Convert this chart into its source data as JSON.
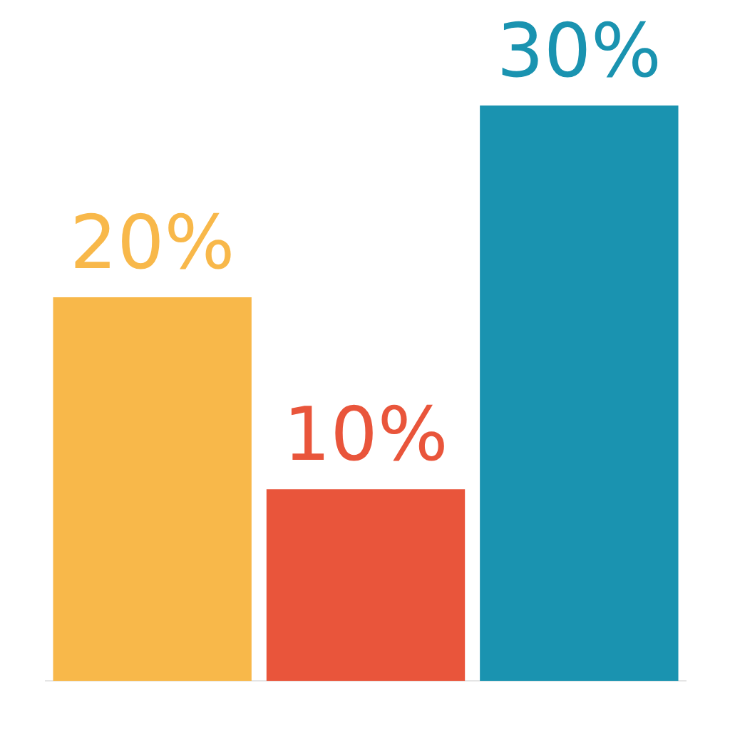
{
  "chart_data": {
    "type": "bar",
    "categories": [
      null,
      null,
      null
    ],
    "values": [
      20,
      10,
      30
    ],
    "colors": [
      "#f8b84a",
      "#e9553b",
      "#1a93b0"
    ],
    "value_labels": [
      "20%",
      "10%",
      "30%"
    ],
    "legend": false
  }
}
